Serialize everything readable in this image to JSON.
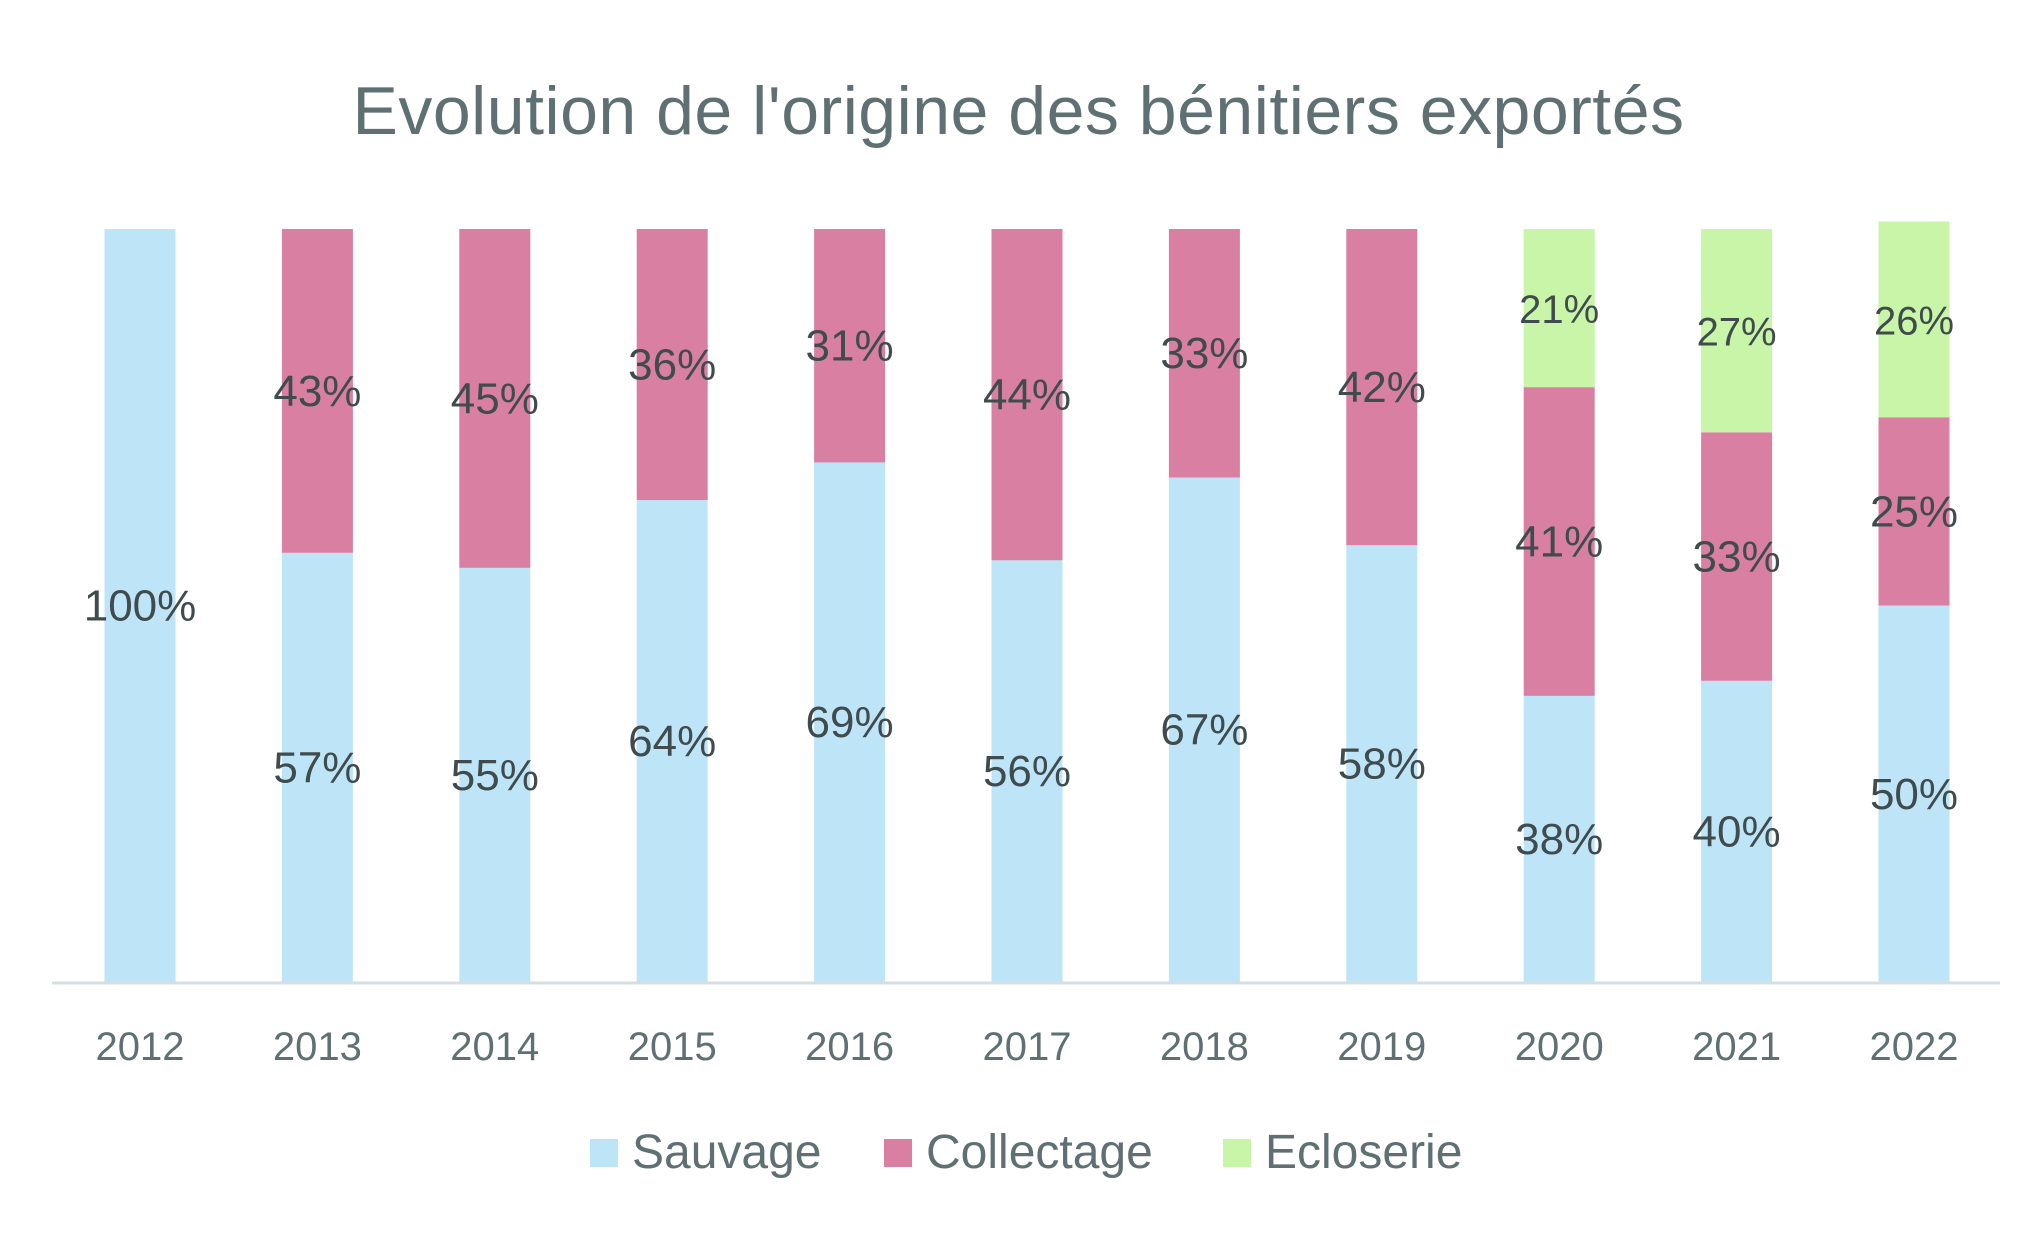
{
  "chart_data": {
    "type": "bar",
    "stacked": true,
    "percent_stacked": true,
    "title": "Evolution de l'origine des bénitiers exportés",
    "categories": [
      "2012",
      "2013",
      "2014",
      "2015",
      "2016",
      "2017",
      "2018",
      "2019",
      "2020",
      "2021",
      "2022"
    ],
    "series": [
      {
        "name": "Sauvage",
        "color": "#bee5f7",
        "values": [
          100,
          57,
          55,
          64,
          69,
          56,
          67,
          58,
          38,
          40,
          50
        ],
        "labels": [
          "100%",
          "57%",
          "55%",
          "64%",
          "69%",
          "56%",
          "67%",
          "58%",
          "38%",
          "40%",
          "50%"
        ]
      },
      {
        "name": "Collectage",
        "color": "#d980a2",
        "values": [
          0,
          43,
          45,
          36,
          31,
          44,
          33,
          42,
          41,
          33,
          25
        ],
        "labels": [
          "",
          "43%",
          "45%",
          "36%",
          "31%",
          "44%",
          "33%",
          "42%",
          "41%",
          "33%",
          "25%"
        ]
      },
      {
        "name": "Ecloserie",
        "color": "#c8f5a8",
        "values": [
          0,
          0,
          0,
          0,
          0,
          0,
          0,
          0,
          21,
          27,
          26
        ],
        "labels": [
          "",
          "",
          "",
          "",
          "",
          "",
          "",
          "",
          "21%",
          "27%",
          "26%"
        ]
      }
    ],
    "ylim": [
      0,
      100
    ],
    "grid": false,
    "legend": "bottom",
    "data_labels": true
  }
}
